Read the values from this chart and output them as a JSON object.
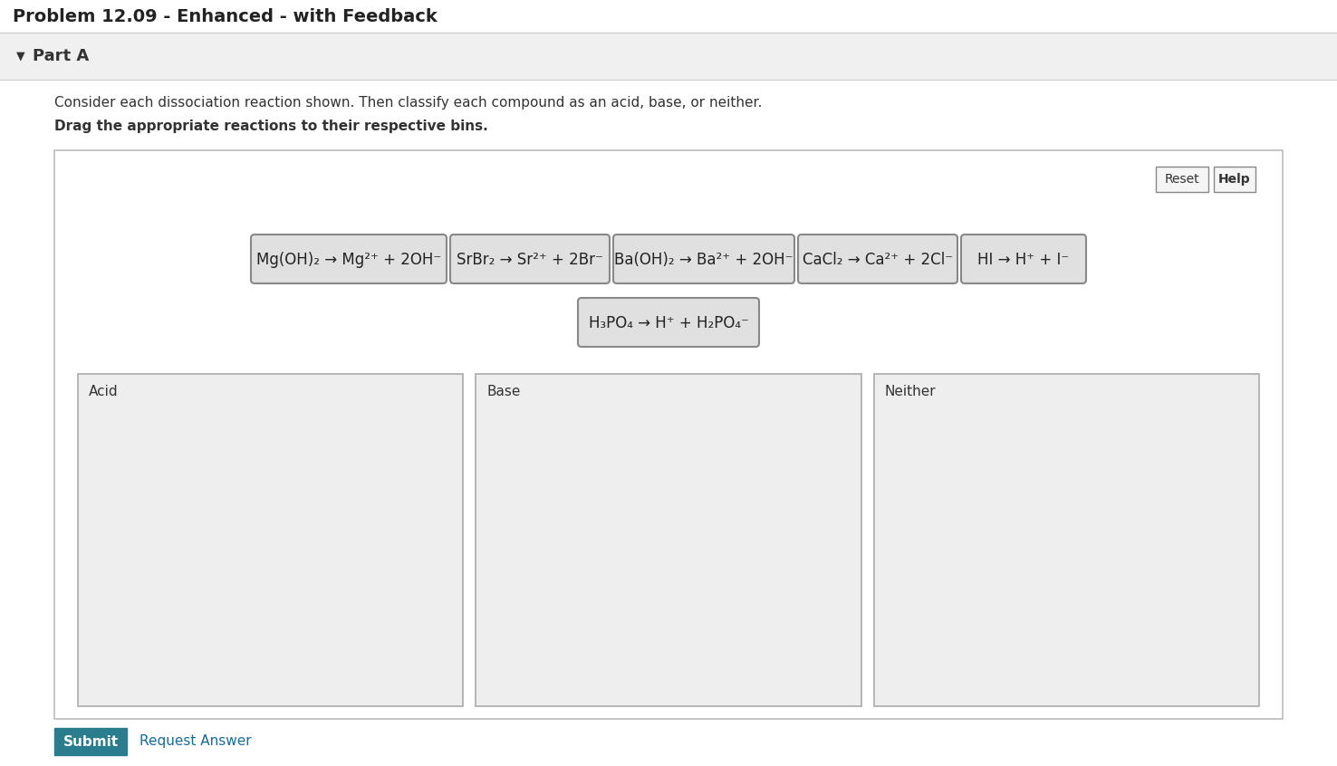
{
  "title": "Problem 12.09 - Enhanced - with Feedback",
  "part_label": "Part A",
  "part_symbol": "▼",
  "instruction1": "Consider each dissociation reaction shown. Then classify each compound as an acid, base, or neither.",
  "instruction2": "Drag the appropriate reactions to their respective bins.",
  "reactions_row1": [
    "Mg(OH)₂ → Mg²⁺ + 2OH⁻",
    "SrBr₂ → Sr²⁺ + 2Br⁻",
    "Ba(OH)₂ → Ba²⁺ + 2OH⁻",
    "CaCl₂ → Ca²⁺ + 2Cl⁻",
    "HI → H⁺ + I⁻"
  ],
  "reactions_row2": [
    "H₃PO₄ → H⁺ + H₂PO₄⁻"
  ],
  "bin_labels": [
    "Acid",
    "Base",
    "Neither"
  ],
  "reset_label": "Reset",
  "help_label": "Help",
  "submit_label": "Submit",
  "request_answer_label": "Request Answer",
  "bg_color": "#ffffff",
  "part_a_bg": "#f0f0f0",
  "part_a_border": "#cccccc",
  "panel_bg": "#ffffff",
  "panel_border": "#bbbbbb",
  "bin_bg": "#eeeeee",
  "bin_border": "#aaaaaa",
  "reaction_box_bg": "#e0e0e0",
  "reaction_box_border": "#888888",
  "button_bg": "#f5f5f5",
  "button_border": "#888888",
  "submit_bg": "#2a7d8c",
  "submit_fg": "#ffffff",
  "link_color": "#1a6a9a",
  "text_dark": "#222222",
  "text_mid": "#333333",
  "title_fontsize": 14,
  "part_fontsize": 13,
  "instruction_fontsize": 11,
  "reaction_fontsize": 12,
  "bin_label_fontsize": 11,
  "button_fontsize": 10,
  "submit_fontsize": 11
}
